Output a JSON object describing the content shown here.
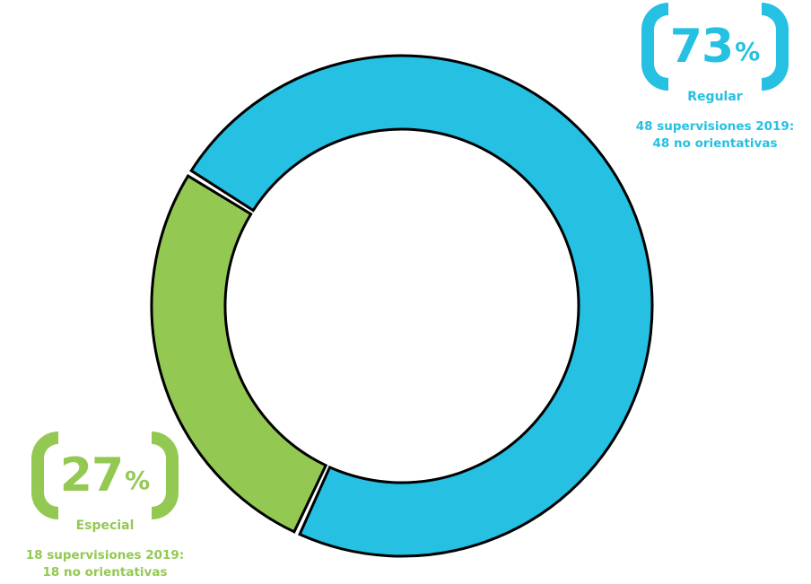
{
  "chart_data": {
    "type": "pie",
    "variant": "donut",
    "title": "",
    "categories": [
      "Regular",
      "Especial"
    ],
    "values": [
      73,
      27
    ],
    "unit": "%",
    "colors": [
      "#25c0e2",
      "#93c953"
    ],
    "stroke_color": "#000000",
    "annotations": [
      {
        "category": "Regular",
        "percent_number": "73",
        "percent_sign": "%",
        "label": "Regular",
        "detail_line1": "48 supervisiones 2019:",
        "detail_line2": "48 no orientativas",
        "color": "#25c0e2"
      },
      {
        "category": "Especial",
        "percent_number": "27",
        "percent_sign": "%",
        "label": "Especial",
        "detail_line1": "18 supervisiones 2019:",
        "detail_line2": "18 no orientativas",
        "color": "#93c953"
      }
    ]
  }
}
